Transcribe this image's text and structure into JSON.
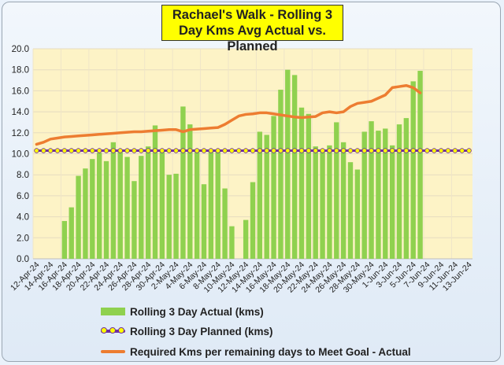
{
  "chart_data": {
    "type": "bar",
    "title_lines": [
      "Rachael's Walk - Rolling 3",
      "Day Kms Avg Actual vs. Planned"
    ],
    "xlabel": "",
    "ylabel": "",
    "ylim": [
      0,
      20
    ],
    "yticks": [
      0,
      2,
      4,
      6,
      8,
      10,
      12,
      14,
      16,
      18,
      20
    ],
    "ytick_labels": [
      "0.0",
      "2.0",
      "4.0",
      "6.0",
      "8.0",
      "10.0",
      "12.0",
      "14.0",
      "16.0",
      "18.0",
      "20.0"
    ],
    "grid": true,
    "legend_position": "bottom",
    "plot_background": "#fdf3c6",
    "tick_label_every": 2,
    "categories": [
      "12-Apr-24",
      "13-Apr-24",
      "14-Apr-24",
      "15-Apr-24",
      "16-Apr-24",
      "17-Apr-24",
      "18-Apr-24",
      "19-Apr-24",
      "20-Apr-24",
      "21-Apr-24",
      "22-Apr-24",
      "23-Apr-24",
      "24-Apr-24",
      "25-Apr-24",
      "26-Apr-24",
      "27-Apr-24",
      "28-Apr-24",
      "29-Apr-24",
      "30-Apr-24",
      "1-May-24",
      "2-May-24",
      "3-May-24",
      "4-May-24",
      "5-May-24",
      "6-May-24",
      "7-May-24",
      "8-May-24",
      "9-May-24",
      "10-May-24",
      "11-May-24",
      "12-May-24",
      "13-May-24",
      "14-May-24",
      "15-May-24",
      "16-May-24",
      "17-May-24",
      "18-May-24",
      "19-May-24",
      "20-May-24",
      "21-May-24",
      "22-May-24",
      "23-May-24",
      "24-May-24",
      "25-May-24",
      "26-May-24",
      "27-May-24",
      "28-May-24",
      "29-May-24",
      "30-May-24",
      "31-May-24",
      "1-Jun-24",
      "2-Jun-24",
      "3-Jun-24",
      "4-Jun-24",
      "5-Jun-24",
      "6-Jun-24",
      "7-Jun-24",
      "8-Jun-24",
      "9-Jun-24",
      "10-Jun-24",
      "11-Jun-24",
      "12-Jun-24",
      "13-Jun-24"
    ],
    "series": [
      {
        "name": "Rolling 3 Day Actual (kms)",
        "kind": "bar",
        "color": "#8fd14f",
        "values": [
          null,
          null,
          null,
          null,
          3.6,
          4.9,
          7.9,
          8.6,
          9.5,
          10.1,
          9.3,
          11.1,
          10.4,
          9.7,
          7.4,
          9.8,
          10.7,
          12.7,
          10.4,
          8.0,
          8.1,
          14.5,
          12.8,
          10.4,
          7.1,
          10.3,
          10.4,
          6.7,
          3.1,
          null,
          3.7,
          7.3,
          12.1,
          11.8,
          13.6,
          16.1,
          18.0,
          17.5,
          14.4,
          13.8,
          10.7,
          10.3,
          10.8,
          13.0,
          11.1,
          9.2,
          8.5,
          12.1,
          13.1,
          12.2,
          12.4,
          10.8,
          12.8,
          13.4,
          16.9,
          17.9,
          null,
          null,
          null,
          null,
          null,
          null,
          null
        ]
      },
      {
        "name": "Rolling 3 Day Planned (kms)",
        "kind": "line-dots",
        "color": "#7030a0",
        "dot_color": "#ffff00",
        "values": [
          10.3,
          10.3,
          10.3,
          10.3,
          10.3,
          10.3,
          10.3,
          10.3,
          10.3,
          10.3,
          10.3,
          10.3,
          10.3,
          10.3,
          10.3,
          10.3,
          10.3,
          10.3,
          10.3,
          10.3,
          10.3,
          10.3,
          10.3,
          10.3,
          10.3,
          10.3,
          10.3,
          10.3,
          10.3,
          10.3,
          10.3,
          10.3,
          10.3,
          10.3,
          10.3,
          10.3,
          10.3,
          10.3,
          10.3,
          10.3,
          10.3,
          10.3,
          10.3,
          10.3,
          10.3,
          10.3,
          10.3,
          10.3,
          10.3,
          10.3,
          10.3,
          10.3,
          10.3,
          10.3,
          10.3,
          10.3,
          10.3,
          10.3,
          10.3,
          10.3,
          10.3,
          10.3,
          10.3
        ]
      },
      {
        "name": "Required Kms per remaining days to Meet Goal - Actual",
        "kind": "line",
        "color": "#ed7d31",
        "values": [
          10.9,
          11.1,
          11.4,
          11.5,
          11.6,
          11.65,
          11.7,
          11.75,
          11.8,
          11.85,
          11.9,
          11.95,
          12.0,
          12.05,
          12.1,
          12.1,
          12.15,
          12.2,
          12.25,
          12.3,
          12.3,
          12.1,
          12.3,
          12.35,
          12.4,
          12.45,
          12.5,
          12.8,
          13.2,
          13.6,
          13.75,
          13.8,
          13.9,
          13.9,
          13.8,
          13.7,
          13.6,
          13.5,
          13.45,
          13.5,
          13.55,
          13.9,
          14.0,
          13.9,
          14.0,
          14.5,
          14.8,
          14.9,
          15.0,
          15.3,
          15.6,
          16.3,
          16.4,
          16.5,
          16.3,
          15.8,
          null,
          null,
          null,
          null,
          null,
          null,
          null
        ]
      }
    ]
  },
  "legend": {
    "bar_label": "Rolling 3 Day Actual (kms)",
    "planned_label": "Rolling 3 Day Planned (kms)",
    "required_label": "Required Kms per remaining days to Meet Goal - Actual"
  }
}
